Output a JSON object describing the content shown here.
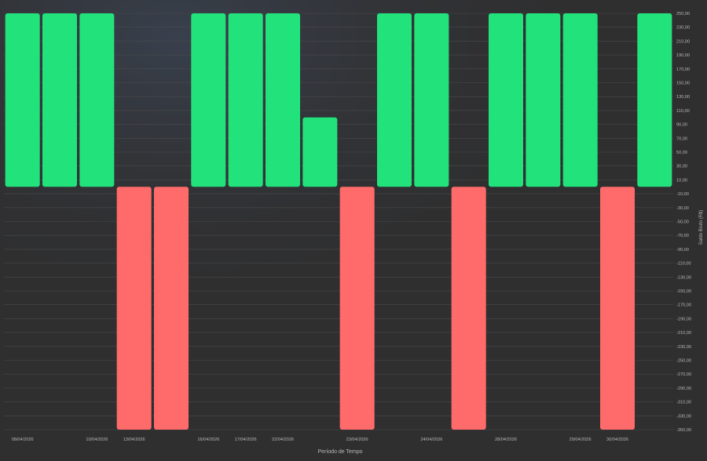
{
  "chart_data": {
    "type": "bar",
    "xlabel": "Período de Tempo",
    "ylabel": "Saldo Bruto (R$)",
    "ylim": [
      -350,
      250
    ],
    "y_ticks": [
      "250,00",
      "230,00",
      "210,00",
      "190,00",
      "170,00",
      "150,00",
      "130,00",
      "110,00",
      "90,00",
      "70,00",
      "50,00",
      "30,00",
      "10,00",
      "-10,00",
      "-30,00",
      "-50,00",
      "-70,00",
      "-90,00",
      "-110,00",
      "-130,00",
      "-150,00",
      "-170,00",
      "-190,00",
      "-210,00",
      "-230,00",
      "-250,00",
      "-270,00",
      "-290,00",
      "-310,00",
      "-330,00",
      "-350,00"
    ],
    "y_tick_values": [
      250,
      230,
      210,
      190,
      170,
      150,
      130,
      110,
      90,
      70,
      50,
      30,
      10,
      -10,
      -30,
      -50,
      -70,
      -90,
      -110,
      -130,
      -150,
      -170,
      -190,
      -210,
      -230,
      -250,
      -270,
      -290,
      -310,
      -330,
      -350
    ],
    "values": [
      250,
      250,
      250,
      -350,
      -350,
      250,
      250,
      250,
      100,
      -350,
      250,
      250,
      -350,
      250,
      250,
      250,
      -350,
      250
    ],
    "x_tick_labels": [
      {
        "index": 0,
        "label": "08/04/2026"
      },
      {
        "index": 2,
        "label": "10/04/2026"
      },
      {
        "index": 3,
        "label": "13/04/2026"
      },
      {
        "index": 5,
        "label": "16/04/2026"
      },
      {
        "index": 6,
        "label": "17/04/2026"
      },
      {
        "index": 7,
        "label": "22/04/2026"
      },
      {
        "index": 9,
        "label": "23/04/2026"
      },
      {
        "index": 11,
        "label": "24/04/2026"
      },
      {
        "index": 13,
        "label": "28/04/2026"
      },
      {
        "index": 15,
        "label": "29/04/2026"
      },
      {
        "index": 16,
        "label": "30/04/2026"
      }
    ],
    "colors": {
      "positive": "#22e27c",
      "negative": "#ff6b6b",
      "grid": "#4a4a4c",
      "text": "#b8b8b8",
      "background": "#2f2f30"
    },
    "grid": true
  }
}
